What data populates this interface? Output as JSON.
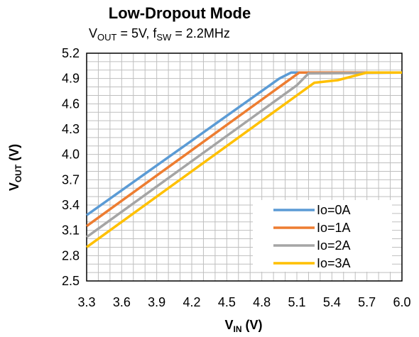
{
  "chart_data": {
    "type": "line",
    "title": "Low-Dropout Mode",
    "subtitle": {
      "v_main": "V",
      "v_sub": "OUT",
      "v_rest": " = 5V, f",
      "f_sub": "SW",
      "f_rest": " = 2.2MHz"
    },
    "xlabel": {
      "main": "V",
      "sub": "IN",
      "unit": " (V)"
    },
    "ylabel": {
      "main": "V",
      "sub": "OUT",
      "unit": " (V)"
    },
    "xlim": [
      3.3,
      6.0
    ],
    "ylim": [
      2.5,
      5.2
    ],
    "x_ticks": [
      "3.3",
      "3.6",
      "3.9",
      "4.2",
      "4.5",
      "4.8",
      "5.1",
      "5.4",
      "5.7",
      "6.0"
    ],
    "y_ticks": [
      "5.2",
      "4.9",
      "4.6",
      "4.3",
      "4.0",
      "3.7",
      "3.4",
      "3.1",
      "2.8",
      "2.5"
    ],
    "grid": true,
    "legend_position": "bottom-right",
    "series": [
      {
        "name": "Io=0A",
        "color": "#5B9BD5",
        "x": [
          3.3,
          4.95,
          5.05,
          6.0
        ],
        "y": [
          3.28,
          4.9,
          4.97,
          4.97
        ]
      },
      {
        "name": "Io=1A",
        "color": "#ED7D31",
        "x": [
          3.3,
          5.0,
          5.12,
          6.0
        ],
        "y": [
          3.15,
          4.85,
          4.97,
          4.97
        ]
      },
      {
        "name": "Io=2A",
        "color": "#A5A5A5",
        "x": [
          3.3,
          5.1,
          5.2,
          6.0
        ],
        "y": [
          3.02,
          4.82,
          4.96,
          4.97
        ]
      },
      {
        "name": "Io=3A",
        "color": "#FFC000",
        "x": [
          3.3,
          5.15,
          5.25,
          5.45,
          5.7,
          6.0
        ],
        "y": [
          2.9,
          4.75,
          4.85,
          4.88,
          4.97,
          4.97
        ]
      }
    ]
  }
}
